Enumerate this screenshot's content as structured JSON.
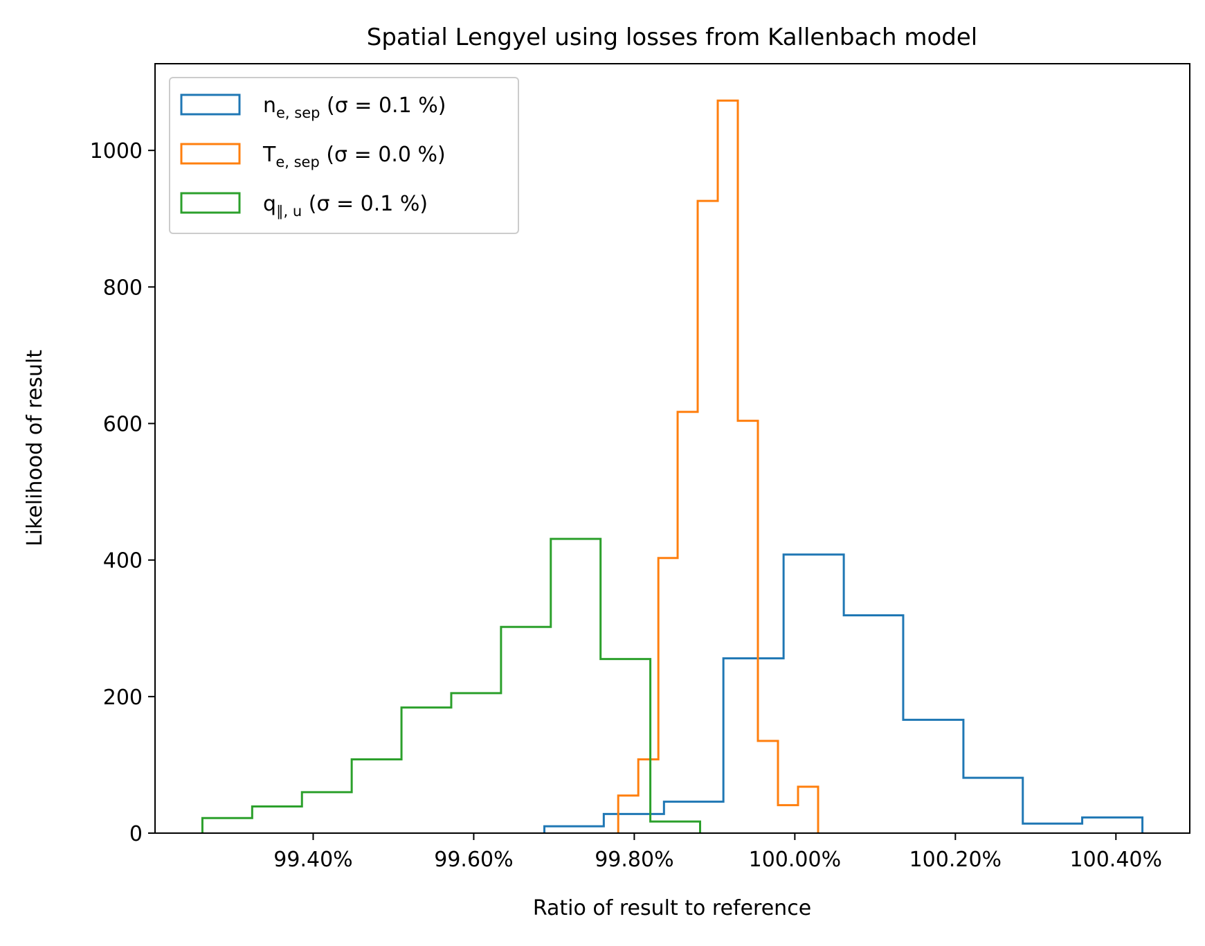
{
  "chart_data": {
    "type": "histogram",
    "title": "Spatial Lengyel using losses from Kallenbach model",
    "xlabel": "Ratio of result to reference",
    "ylabel": "Likelihood of result",
    "xlim": [
      0.99203,
      1.00492
    ],
    "ylim": [
      0,
      1127
    ],
    "x_ticks": [
      {
        "value": 0.994,
        "label": "99.40%"
      },
      {
        "value": 0.996,
        "label": "99.60%"
      },
      {
        "value": 0.998,
        "label": "99.80%"
      },
      {
        "value": 1.0,
        "label": "100.00%"
      },
      {
        "value": 1.002,
        "label": "100.20%"
      },
      {
        "value": 1.004,
        "label": "100.40%"
      }
    ],
    "y_ticks": [
      {
        "value": 0,
        "label": "0"
      },
      {
        "value": 200,
        "label": "200"
      },
      {
        "value": 400,
        "label": "400"
      },
      {
        "value": 600,
        "label": "600"
      },
      {
        "value": 800,
        "label": "800"
      },
      {
        "value": 1000,
        "label": "1000"
      }
    ],
    "grid": false,
    "legend_position": "top-left",
    "series": [
      {
        "name": "n_e,sep (σ = 0.1 %)",
        "legend": {
          "main": "n",
          "sub": "e, sep",
          "rest": " (σ = 0.1 %)"
        },
        "color": "#1f77b4",
        "bin_edges": [
          0.99688,
          0.99762,
          0.99837,
          0.99911,
          0.99986,
          1.00061,
          1.00135,
          1.0021,
          1.00284,
          1.00358,
          1.00433
        ],
        "counts": [
          10,
          28,
          46,
          256,
          408,
          319,
          166,
          81,
          14,
          23
        ]
      },
      {
        "name": "T_e,sep (σ = 0.0 %)",
        "legend": {
          "main": "T",
          "sub": "e, sep",
          "rest": " (σ = 0.0 %)"
        },
        "color": "#ff7f0e",
        "bin_edges": [
          0.9978,
          0.99805,
          0.9983,
          0.99854,
          0.99879,
          0.99904,
          0.99929,
          0.99954,
          0.99979,
          1.00004,
          1.00029
        ],
        "counts": [
          55,
          108,
          403,
          617,
          926,
          1073,
          604,
          135,
          41,
          68
        ]
      },
      {
        "name": "q_∥,u (σ = 0.1 %)",
        "legend": {
          "main": "q",
          "sub": "∥, u",
          "rest": " (σ = 0.1 %)"
        },
        "color": "#2ca02c",
        "bin_edges": [
          0.99262,
          0.99324,
          0.99386,
          0.99448,
          0.9951,
          0.99572,
          0.99634,
          0.99696,
          0.99758,
          0.9982,
          0.99882
        ],
        "counts": [
          22,
          39,
          60,
          108,
          184,
          205,
          302,
          431,
          255,
          17
        ]
      }
    ]
  }
}
